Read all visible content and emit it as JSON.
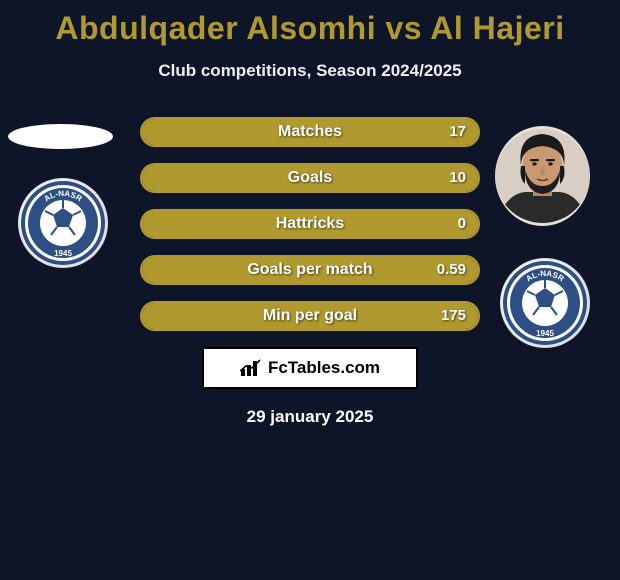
{
  "colors": {
    "background": "#0e1528",
    "title": "#b09a2f",
    "subtitle_text": "#f0f0f0",
    "bar_border": "#b09a2f",
    "bar_fill": "#b09a2f",
    "text_light": "#ffffff",
    "date_text": "#ffffff",
    "badge_blue": "#2d4f84",
    "brand_dark": "#000000"
  },
  "header": {
    "title": "Abdulqader Alsomhi vs Al Hajeri",
    "subtitle": "Club competitions, Season 2024/2025"
  },
  "stats": [
    {
      "label": "Matches",
      "left_pct": 0,
      "right_pct": 100,
      "right_value": "17"
    },
    {
      "label": "Goals",
      "left_pct": 0,
      "right_pct": 100,
      "right_value": "10"
    },
    {
      "label": "Hattricks",
      "left_pct": 0,
      "right_pct": 100,
      "right_value": "0"
    },
    {
      "label": "Goals per match",
      "left_pct": 0,
      "right_pct": 100,
      "right_value": "0.59"
    },
    {
      "label": "Min per goal",
      "left_pct": 0,
      "right_pct": 100,
      "right_value": "175"
    }
  ],
  "brand": {
    "text": "FcTables.com",
    "icon": "bars-icon"
  },
  "date": "29 january 2025",
  "club": {
    "name_top": "AL-NASR",
    "name_bottom": "1945"
  }
}
